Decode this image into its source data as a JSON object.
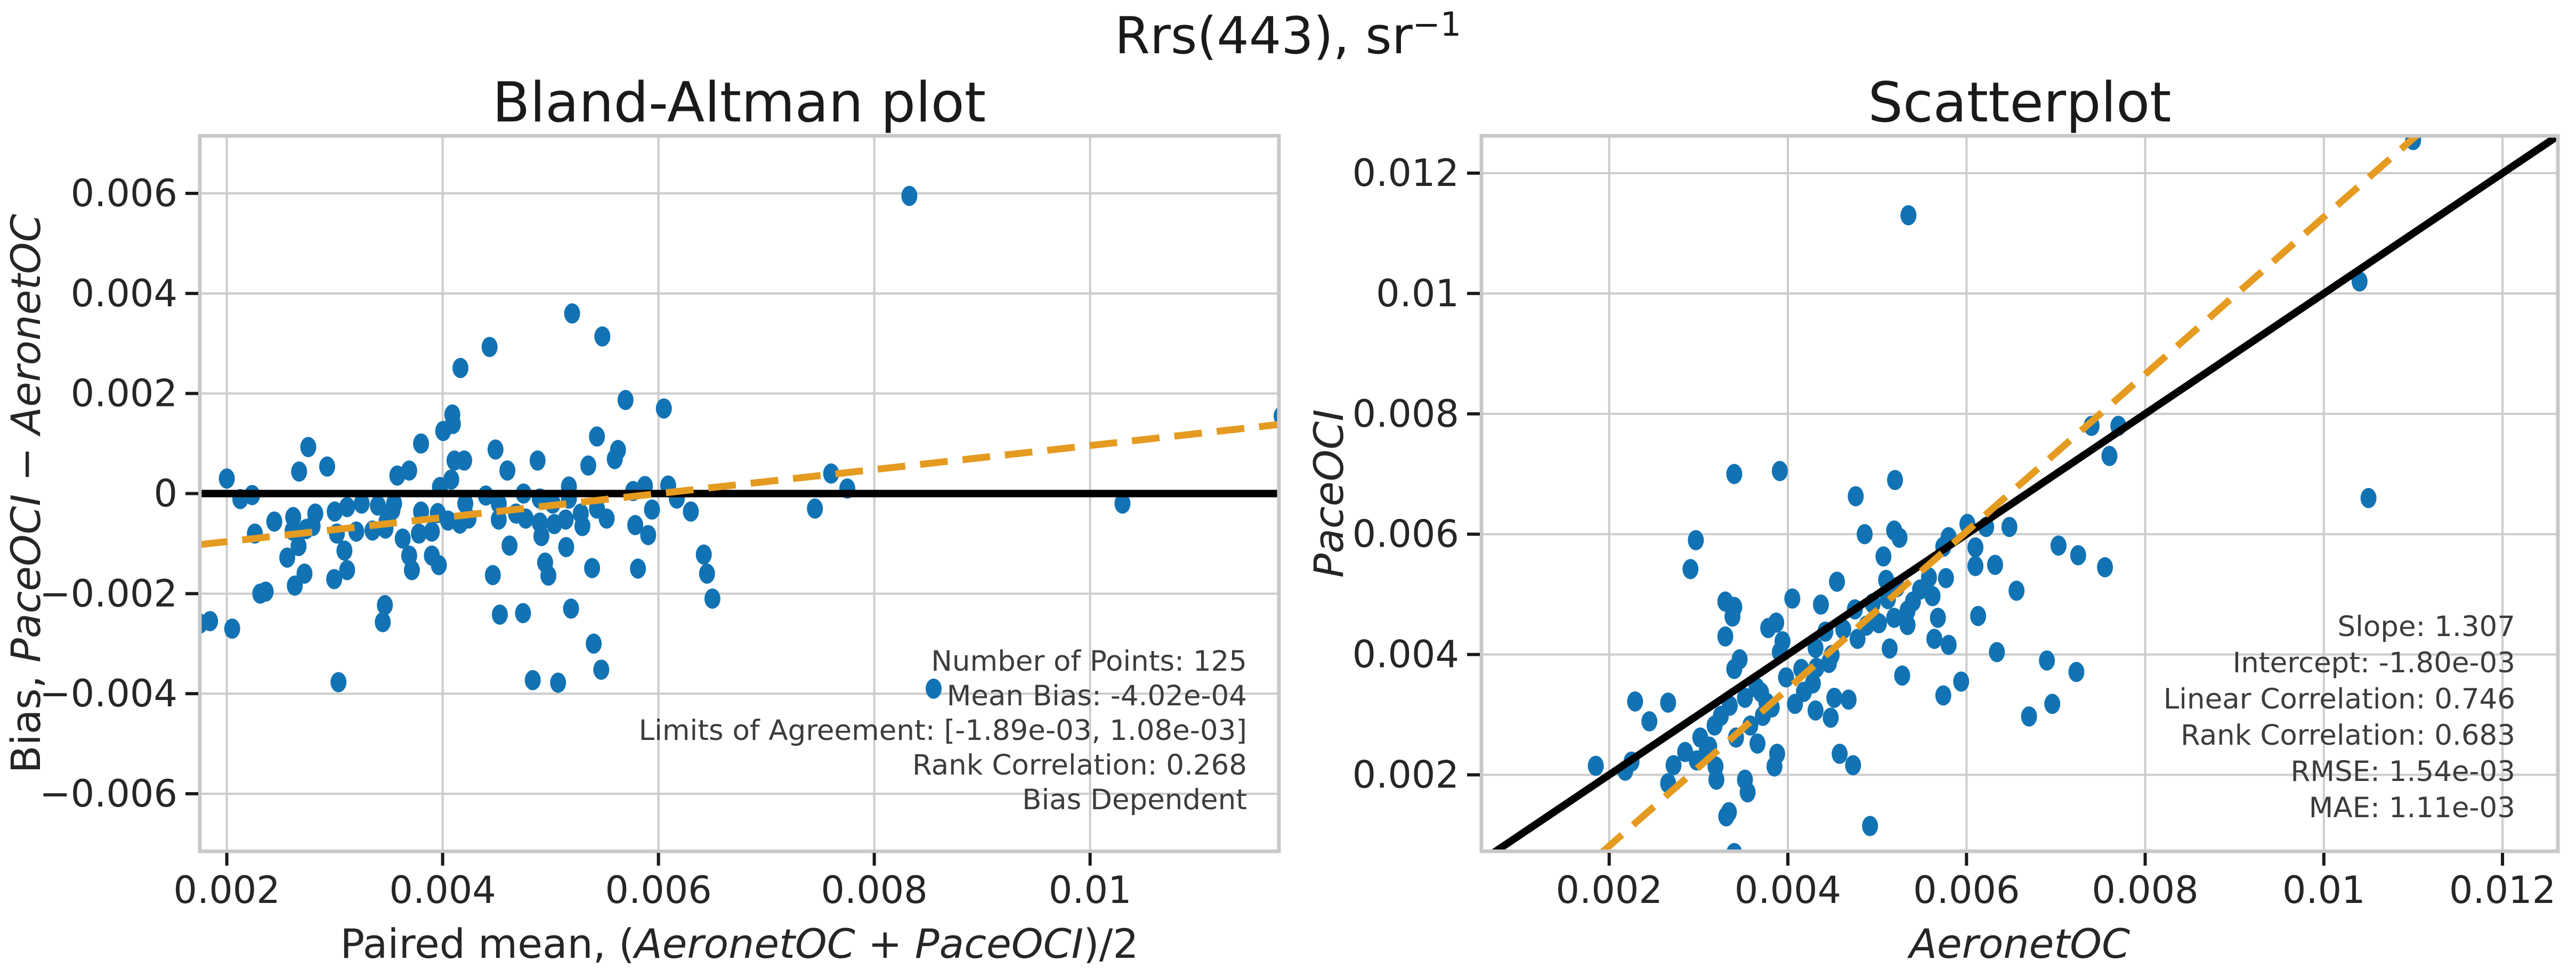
{
  "figure": {
    "suptitle": {
      "base": "Rrs(443), sr",
      "superscript": "−1"
    }
  },
  "colors": {
    "background": "#ffffff",
    "marker": "#1173b4",
    "identity_line": "#000000",
    "fit_line": "#e49b20",
    "grid": "#cccccc",
    "spine": "#c8c8c8",
    "tick": "#1a1a1a",
    "tick_label": "#262626",
    "stats_text": "#3c3c3c"
  },
  "chart_data": [
    {
      "type": "scatter",
      "id": "bland_altman",
      "title": "Bland-Altman plot",
      "xlabel_parts": [
        {
          "t": "Paired mean, (",
          "i": false
        },
        {
          "t": "AeronetOC",
          "i": true
        },
        {
          "t": " + ",
          "i": false
        },
        {
          "t": "PaceOCI",
          "i": true
        },
        {
          "t": ")/2",
          "i": false
        }
      ],
      "ylabel_parts": [
        {
          "t": "Bias, ",
          "i": false
        },
        {
          "t": "PaceOCI",
          "i": true
        },
        {
          "t": " − ",
          "i": false
        },
        {
          "t": "AeronetOC",
          "i": true
        }
      ],
      "xlim": [
        0.00175,
        0.01175
      ],
      "ylim": [
        -0.00715,
        0.00715
      ],
      "xticks": {
        "values": [
          0.002,
          0.004,
          0.006,
          0.008,
          0.01
        ],
        "labels": [
          "0.002",
          "0.004",
          "0.006",
          "0.008",
          "0.01"
        ]
      },
      "yticks": {
        "values": [
          0.006,
          0.004,
          0.002,
          0,
          -0.002,
          -0.004,
          -0.006
        ],
        "labels": [
          "0.006",
          "0.004",
          "0.002",
          "0",
          "−0.002",
          "−0.004",
          "−0.006"
        ]
      },
      "grid": true,
      "legend": "none",
      "lines": [
        {
          "name": "zero-bias-line",
          "x": [
            0.00175,
            0.01175
          ],
          "y": [
            0,
            0
          ],
          "style": "solid",
          "width": 14,
          "color": "identity"
        },
        {
          "name": "bias-trend-line",
          "x": [
            0.00175,
            0.01175
          ],
          "y": [
            -0.00102,
            0.00138
          ],
          "style": "dashed",
          "width": 13,
          "color": "fit"
        }
      ],
      "stats_lines": [
        "Number of Points: 125",
        "Mean Bias: -4.02e-04",
        "Limits of Agreement: [-1.89e-03, 1.08e-03]",
        "Rank Correlation: 0.268",
        "Bias Dependent"
      ],
      "points": [
        [
          0.008325,
          0.00595
        ],
        [
          0.0103,
          -0.0002
        ],
        [
          0.011775,
          0.00155
        ],
        [
          0.00855,
          -0.0039
        ],
        [
          0.0076,
          0.0004
        ],
        [
          0.00775,
          0.0001
        ],
        [
          0.00745,
          -0.0003
        ],
        [
          0.005695,
          0.00187
        ],
        [
          0.00543,
          0.00114
        ],
        [
          0.005625,
          0.00087
        ],
        [
          0.005595,
          0.00069
        ],
        [
          0.00535,
          0.00056
        ],
        [
          0.00517,
          0.00014
        ],
        [
          0.004165,
          0.00251
        ],
        [
          0.00409,
          0.00158
        ],
        [
          0.004095,
          0.00139
        ],
        [
          0.00408,
          0.00028
        ],
        [
          0.003975,
          0.00013
        ],
        [
          0.00369,
          0.00046
        ],
        [
          0.00358,
          0.00036
        ],
        [
          0.003535,
          -0.00033
        ],
        [
          0.00348,
          -0.00056
        ],
        [
          0.003115,
          -0.00153
        ],
        [
          0.002995,
          -0.00171
        ],
        [
          0.002735,
          -0.00071
        ],
        [
          0.002755,
          0.00093
        ],
        [
          0.00267,
          0.00044
        ],
        [
          0.00293,
          0.00054
        ],
        [
          0.00244,
          -0.00056
        ],
        [
          0.00226,
          -0.0008
        ],
        [
          0.00256,
          -0.00128
        ],
        [
          0.002665,
          -0.00105
        ],
        [
          0.00272,
          -0.0016
        ],
        [
          0.00263,
          -0.00184
        ],
        [
          0.00236,
          -0.00196
        ],
        [
          0.00205,
          -0.0027
        ],
        [
          0.003035,
          -0.00377
        ],
        [
          0.00514,
          -0.00052
        ],
        [
          0.005035,
          -0.00061
        ],
        [
          0.005145,
          -0.00107
        ],
        [
          0.005295,
          -0.00065
        ],
        [
          0.00552,
          -0.0005
        ],
        [
          0.00594,
          -0.00032
        ],
        [
          0.00609,
          0.00016
        ],
        [
          0.005385,
          -0.00149
        ],
        [
          0.00581,
          -0.0015
        ],
        [
          0.00519,
          -0.0023
        ],
        [
          0.004745,
          -0.00239
        ],
        [
          0.00453,
          -0.00242
        ],
        [
          0.00416,
          -0.0006
        ],
        [
          0.0039,
          -0.00124
        ],
        [
          0.00369,
          -0.00124
        ],
        [
          0.003465,
          -0.00223
        ],
        [
          0.003445,
          -0.00257
        ],
        [
          0.0052,
          0.0036
        ],
        [
          0.00548,
          0.00314
        ],
        [
          0.00605,
          0.0017
        ],
        [
          0.0038,
          0.001
        ],
        [
          0.00449,
          0.00088
        ],
        [
          0.0042,
          0.00066
        ],
        [
          0.0046,
          0.00046
        ],
        [
          0.00475,
          0
        ],
        [
          0.0049,
          -0.0001
        ],
        [
          0.00488,
          0.00066
        ],
        [
          0.00642,
          -0.00122
        ],
        [
          0.00645,
          -0.0016
        ],
        [
          0.0065,
          -0.0021
        ],
        [
          0.00617,
          -0.0001
        ],
        [
          0.0063,
          -0.00036
        ],
        [
          0.005905,
          -0.00083
        ],
        [
          0.005785,
          -0.00063
        ],
        [
          0.002125,
          -0.00011
        ],
        [
          0.002235,
          -3e-05
        ],
        [
          0.002,
          0.0003
        ],
        [
          0.00231,
          -0.002
        ],
        [
          0.001845,
          -0.00255
        ],
        [
          0.00175,
          -0.0026
        ],
        [
          0.004005,
          0.00125
        ],
        [
          0.00411,
          0.00066
        ],
        [
          0.00421,
          -0.0002
        ],
        [
          0.00424,
          -0.0005
        ],
        [
          0.004465,
          -0.00163
        ],
        [
          0.00498,
          -0.00164
        ],
        [
          0.00462,
          -0.00104
        ],
        [
          0.00495,
          -0.00138
        ],
        [
          0.005765,
          5e-05
        ],
        [
          0.005875,
          0.00015
        ],
        [
          0.0049,
          -0.00058
        ],
        [
          0.004915,
          -0.00085
        ],
        [
          0.0054,
          -0.003
        ],
        [
          0.00547,
          -0.00352
        ],
        [
          0.00507,
          -0.00378
        ],
        [
          0.004835,
          -0.00373
        ],
        [
          0.004435,
          0.00293
        ],
        [
          0.00261,
          -0.00074
        ],
        [
          0.002615,
          -0.00047
        ],
        [
          0.00302,
          -0.0008
        ],
        [
          0.0032,
          -0.00076
        ],
        [
          0.00309,
          -0.00114
        ],
        [
          0.003,
          -0.00036
        ],
        [
          0.003115,
          -0.00027
        ],
        [
          0.00325,
          -0.0002
        ],
        [
          0.0034,
          -0.00024
        ],
        [
          0.00355,
          -0.0002
        ],
        [
          0.00282,
          -0.0004
        ],
        [
          0.002795,
          -0.00065
        ],
        [
          0.0038,
          -0.00036
        ],
        [
          0.003955,
          -0.00039
        ],
        [
          0.0039,
          -0.00076
        ],
        [
          0.0044,
          -4e-05
        ],
        [
          0.00452,
          -0.0002
        ],
        [
          0.00452,
          -0.00052
        ],
        [
          0.00468,
          -0.0004
        ],
        [
          0.00477,
          -0.0005
        ],
        [
          0.00502,
          -0.0002
        ],
        [
          0.00517,
          -0.0001
        ],
        [
          0.00528,
          -0.0004
        ],
        [
          0.00543,
          -0.0003
        ],
        [
          0.003715,
          -0.00153
        ],
        [
          0.003965,
          -0.00143
        ],
        [
          0.00335,
          -0.00074
        ],
        [
          0.00347,
          -0.0007
        ],
        [
          0.00363,
          -0.0009
        ],
        [
          0.00378,
          -0.0008
        ],
        [
          0.00405,
          -0.00054
        ]
      ]
    },
    {
      "type": "scatter",
      "id": "scatterplot",
      "title": "Scatterplot",
      "xlabel_parts": [
        {
          "t": "AeronetOC",
          "i": true
        }
      ],
      "ylabel_parts": [
        {
          "t": "PaceOCI",
          "i": true
        }
      ],
      "xlim": [
        0.00057,
        0.01262
      ],
      "ylim": [
        0.00073,
        0.01262
      ],
      "xticks": {
        "values": [
          0.002,
          0.004,
          0.006,
          0.008,
          0.01,
          0.012
        ],
        "labels": [
          "0.002",
          "0.004",
          "0.006",
          "0.008",
          "0.01",
          "0.012"
        ]
      },
      "yticks": {
        "values": [
          0.002,
          0.004,
          0.006,
          0.008,
          0.01,
          0.012
        ],
        "labels": [
          "0.002",
          "0.004",
          "0.006",
          "0.008",
          "0.01",
          "0.012"
        ]
      },
      "grid": true,
      "legend": "none",
      "lines": [
        {
          "name": "one-to-one-line",
          "x": [
            0.0006,
            0.0127
          ],
          "y": [
            0.0006,
            0.0127
          ],
          "style": "solid",
          "width": 14,
          "color": "identity"
        },
        {
          "name": "regression-line",
          "x": [
            0.00191,
            0.01106
          ],
          "y": [
            0.0007,
            0.012655
          ],
          "style": "dashed",
          "width": 13,
          "color": "fit"
        }
      ],
      "stats_lines": [
        "Slope: 1.307",
        "Intercept: -1.80e-03",
        "Linear Correlation: 0.746",
        "Rank Correlation: 0.683",
        "RMSE: 1.54e-03",
        "MAE: 1.11e-03"
      ],
      "points": [
        [
          0.00535,
          0.0113
        ],
        [
          0.0104,
          0.0102
        ],
        [
          0.011,
          0.01255
        ],
        [
          0.0105,
          0.0066
        ],
        [
          0.0074,
          0.0078
        ],
        [
          0.0077,
          0.0078
        ],
        [
          0.0076,
          0.0073
        ],
        [
          0.00476,
          0.00663
        ],
        [
          0.00486,
          0.006
        ],
        [
          0.00519,
          0.00606
        ],
        [
          0.00525,
          0.00594
        ],
        [
          0.00507,
          0.00563
        ],
        [
          0.0051,
          0.00524
        ],
        [
          0.00291,
          0.00542
        ],
        [
          0.0033,
          0.00488
        ],
        [
          0.0034,
          0.00479
        ],
        [
          0.00394,
          0.00422
        ],
        [
          0.00391,
          0.00404
        ],
        [
          0.00346,
          0.00392
        ],
        [
          0.0034,
          0.00376
        ],
        [
          0.0037,
          0.00337
        ],
        [
          0.00376,
          0.0032
        ],
        [
          0.00388,
          0.00235
        ],
        [
          0.00385,
          0.00214
        ],
        [
          0.00309,
          0.00238
        ],
        [
          0.00229,
          0.00322
        ],
        [
          0.00245,
          0.00289
        ],
        [
          0.00266,
          0.0032
        ],
        [
          0.00272,
          0.00216
        ],
        [
          0.00266,
          0.00186
        ],
        [
          0.0032,
          0.00192
        ],
        [
          0.00319,
          0.00214
        ],
        [
          0.00352,
          0.00192
        ],
        [
          0.00355,
          0.00171
        ],
        [
          0.00334,
          0.00138
        ],
        [
          0.0034,
          0.0007
        ],
        [
          0.00492,
          0.00115
        ],
        [
          0.0054,
          0.00488
        ],
        [
          0.00534,
          0.00473
        ],
        [
          0.00568,
          0.00461
        ],
        [
          0.00562,
          0.00497
        ],
        [
          0.00577,
          0.00527
        ],
        [
          0.0061,
          0.00578
        ],
        [
          0.00601,
          0.00617
        ],
        [
          0.00613,
          0.00464
        ],
        [
          0.00656,
          0.00506
        ],
        [
          0.00634,
          0.00404
        ],
        [
          0.00594,
          0.00355
        ],
        [
          0.00574,
          0.00332
        ],
        [
          0.00446,
          0.00386
        ],
        [
          0.00452,
          0.00328
        ],
        [
          0.00431,
          0.00307
        ],
        [
          0.00458,
          0.00235
        ],
        [
          0.00473,
          0.00216
        ],
        [
          0.0034,
          0.007
        ],
        [
          0.00391,
          0.00705
        ],
        [
          0.0052,
          0.0069
        ],
        [
          0.0033,
          0.0043
        ],
        [
          0.00405,
          0.00493
        ],
        [
          0.00387,
          0.00453
        ],
        [
          0.00437,
          0.00483
        ],
        [
          0.00475,
          0.00475
        ],
        [
          0.00495,
          0.00485
        ],
        [
          0.00455,
          0.00521
        ],
        [
          0.00703,
          0.00581
        ],
        [
          0.00725,
          0.00565
        ],
        [
          0.00755,
          0.00545
        ],
        [
          0.00622,
          0.00612
        ],
        [
          0.00648,
          0.00612
        ],
        [
          0.00632,
          0.00549
        ],
        [
          0.0061,
          0.00547
        ],
        [
          0.00218,
          0.00207
        ],
        [
          0.00225,
          0.00222
        ],
        [
          0.00185,
          0.00215
        ],
        [
          0.00331,
          0.00131
        ],
        [
          0.00312,
          0.00057
        ],
        [
          0.00305,
          0.00045
        ],
        [
          0.00338,
          0.00463
        ],
        [
          0.00378,
          0.00444
        ],
        [
          0.00431,
          0.00411
        ],
        [
          0.00449,
          0.00399
        ],
        [
          0.00528,
          0.00365
        ],
        [
          0.0058,
          0.00416
        ],
        [
          0.00514,
          0.0041
        ],
        [
          0.00564,
          0.00426
        ],
        [
          0.00574,
          0.00579
        ],
        [
          0.0058,
          0.00595
        ],
        [
          0.00519,
          0.00461
        ],
        [
          0.00534,
          0.00449
        ],
        [
          0.0069,
          0.0039
        ],
        [
          0.00723,
          0.00371
        ],
        [
          0.00696,
          0.00318
        ],
        [
          0.0067,
          0.00297
        ],
        [
          0.00297,
          0.0059
        ],
        [
          0.00298,
          0.00224
        ],
        [
          0.00285,
          0.00238
        ],
        [
          0.00342,
          0.00262
        ],
        [
          0.00358,
          0.00282
        ],
        [
          0.00366,
          0.00252
        ],
        [
          0.00318,
          0.00282
        ],
        [
          0.00325,
          0.00298
        ],
        [
          0.00335,
          0.00315
        ],
        [
          0.00352,
          0.00328
        ],
        [
          0.00365,
          0.00345
        ],
        [
          0.00302,
          0.00262
        ],
        [
          0.00312,
          0.00247
        ],
        [
          0.00398,
          0.00362
        ],
        [
          0.00415,
          0.00376
        ],
        [
          0.00428,
          0.00352
        ],
        [
          0.00442,
          0.00438
        ],
        [
          0.00462,
          0.00442
        ],
        [
          0.00478,
          0.00426
        ],
        [
          0.00488,
          0.00448
        ],
        [
          0.00502,
          0.00452
        ],
        [
          0.00512,
          0.00492
        ],
        [
          0.00522,
          0.00512
        ],
        [
          0.00548,
          0.00508
        ],
        [
          0.00558,
          0.00528
        ],
        [
          0.00448,
          0.00295
        ],
        [
          0.00468,
          0.00325
        ],
        [
          0.00372,
          0.00298
        ],
        [
          0.00382,
          0.00312
        ],
        [
          0.00408,
          0.00318
        ],
        [
          0.00418,
          0.00338
        ],
        [
          0.00432,
          0.00378
        ]
      ]
    }
  ]
}
